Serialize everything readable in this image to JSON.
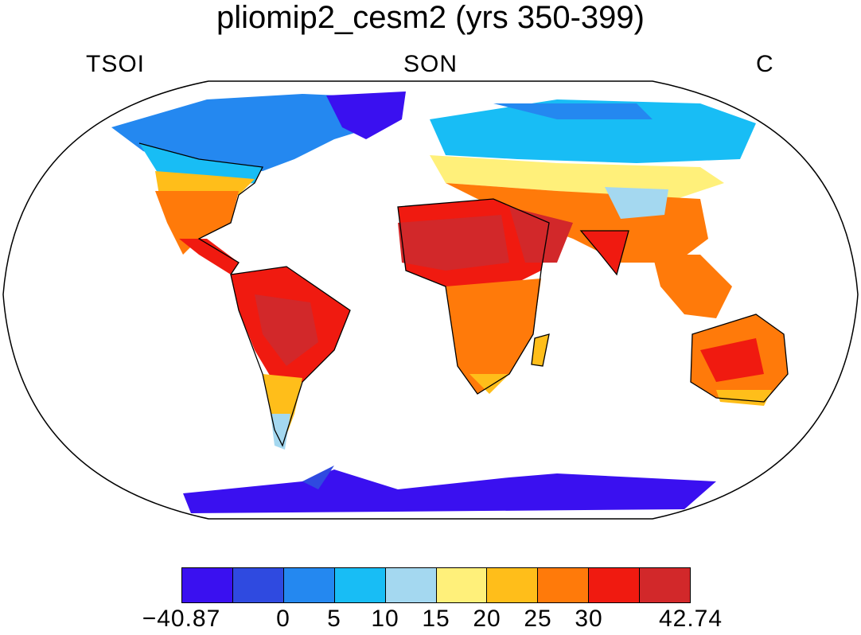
{
  "title": "pliomip2_cesm2 (yrs 350-399)",
  "left_label": "TSOI",
  "center_label": "SON",
  "right_label": "C",
  "colorbar": {
    "colors": [
      "#3a10f0",
      "#2f4ae0",
      "#2488f0",
      "#18bdf5",
      "#a4d8f0",
      "#fff07a",
      "#ffbe1a",
      "#ff7a0a",
      "#f01a10",
      "#d2282a"
    ],
    "tick_labels": [
      "−40.87",
      "0",
      "5",
      "10",
      "15",
      "20",
      "25",
      "30",
      "42.74"
    ]
  }
}
